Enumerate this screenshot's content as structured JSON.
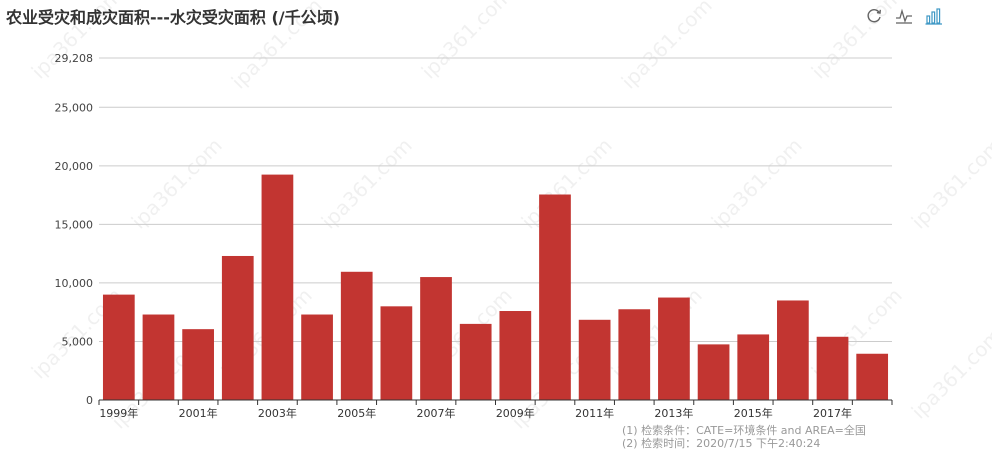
{
  "title": "农业受灾和成灾面积---水灾受灾面积 (/千公顷)",
  "toolbox": {
    "restore_icon": "refresh-icon",
    "line_icon": "line-chart-icon",
    "bar_icon": "bar-chart-icon"
  },
  "watermark": "ipa361.com",
  "footer": {
    "line1": "(1) 检索条件：CATE=环境条件 and AREA=全国",
    "line2": "(2) 检索时间：2020/7/15 下午2:40:24"
  },
  "colors": {
    "bar": "#c23531",
    "grid": "#cccccc",
    "axis": "#333333"
  },
  "chart_data": {
    "type": "bar",
    "title": "农业受灾和成灾面积---水灾受灾面积 (/千公顷)",
    "categories": [
      "1999年",
      "2000年",
      "2001年",
      "2002年",
      "2003年",
      "2004年",
      "2005年",
      "2006年",
      "2007年",
      "2008年",
      "2009年",
      "2010年",
      "2011年",
      "2012年",
      "2013年",
      "2014年",
      "2015年",
      "2016年",
      "2017年",
      "2018年"
    ],
    "x_tick_labels": [
      "1999年",
      "2001年",
      "2003年",
      "2005年",
      "2007年",
      "2009年",
      "2011年",
      "2013年",
      "2015年",
      "2017年"
    ],
    "values": [
      9000,
      7300,
      6050,
      12300,
      19250,
      7300,
      10950,
      8000,
      10500,
      6500,
      7600,
      17550,
      6850,
      7750,
      8750,
      4750,
      5600,
      8500,
      5400,
      3950
    ],
    "ylim": [
      0,
      29208
    ],
    "y_tick_labels": [
      "0",
      "5,000",
      "10,000",
      "15,000",
      "20,000",
      "25,000",
      "29,208"
    ],
    "y_tick_values": [
      0,
      5000,
      10000,
      15000,
      20000,
      25000,
      29208
    ],
    "grid": true,
    "legend": "none"
  }
}
